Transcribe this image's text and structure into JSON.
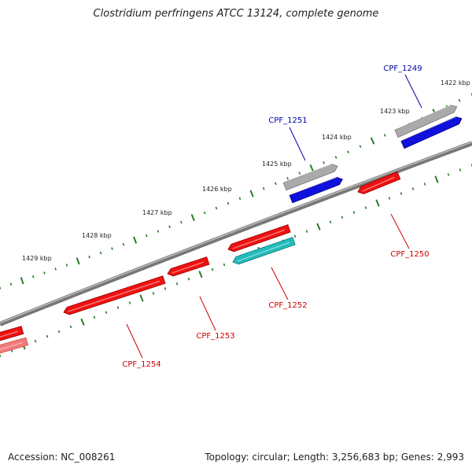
{
  "title": "Clostridium perfringens ATCC 13124, complete genome",
  "footer": {
    "accession": "Accession: NC_008261",
    "summary": "Topology: circular; Length: 3,256,683 bp; Genes: 2,993"
  },
  "colors": {
    "backbone": "#777777",
    "tick": "#2a7a2a",
    "red": "#ee1111",
    "red_light": "#f07a7a",
    "blue": "#1111dd",
    "teal": "#22bbbb",
    "grey": "#aaaaaa",
    "label_red": "#cc0000",
    "label_blue": "#0000aa"
  },
  "scale_labels": [
    "1422 kbp",
    "1423 kbp",
    "1424 kbp",
    "1425 kbp",
    "1426 kbp",
    "1427 kbp",
    "1428 kbp",
    "1429 kbp"
  ],
  "features": [
    {
      "id": "cpf-1249-blue",
      "track": "forward-1",
      "color": "blue",
      "direction": "right"
    },
    {
      "id": "cpf-1249-grey",
      "track": "forward-2",
      "color": "grey",
      "direction": "right"
    },
    {
      "id": "cpf-1250",
      "track": "reverse-1",
      "color": "red",
      "direction": "left"
    },
    {
      "id": "cpf-1251-blue",
      "track": "forward-1",
      "color": "blue",
      "direction": "right"
    },
    {
      "id": "cpf-1251-grey",
      "track": "forward-2",
      "color": "grey",
      "direction": "right"
    },
    {
      "id": "cpf-1252-red",
      "track": "reverse-1",
      "color": "red",
      "direction": "left"
    },
    {
      "id": "cpf-1252-teal",
      "track": "reverse-2",
      "color": "teal",
      "direction": "left"
    },
    {
      "id": "cpf-1253",
      "track": "reverse-1",
      "color": "red",
      "direction": "left"
    },
    {
      "id": "cpf-1254",
      "track": "reverse-1",
      "color": "red",
      "direction": "left"
    },
    {
      "id": "edge-red",
      "track": "reverse-1",
      "color": "red",
      "direction": "left"
    },
    {
      "id": "edge-red-light",
      "track": "reverse-2",
      "color": "red_light",
      "direction": "left"
    }
  ],
  "gene_labels": [
    {
      "text": "CPF_1249",
      "color": "blue"
    },
    {
      "text": "CPF_1250",
      "color": "red"
    },
    {
      "text": "CPF_1251",
      "color": "blue"
    },
    {
      "text": "CPF_1252",
      "color": "red"
    },
    {
      "text": "CPF_1253",
      "color": "red"
    },
    {
      "text": "CPF_1254",
      "color": "red"
    }
  ]
}
